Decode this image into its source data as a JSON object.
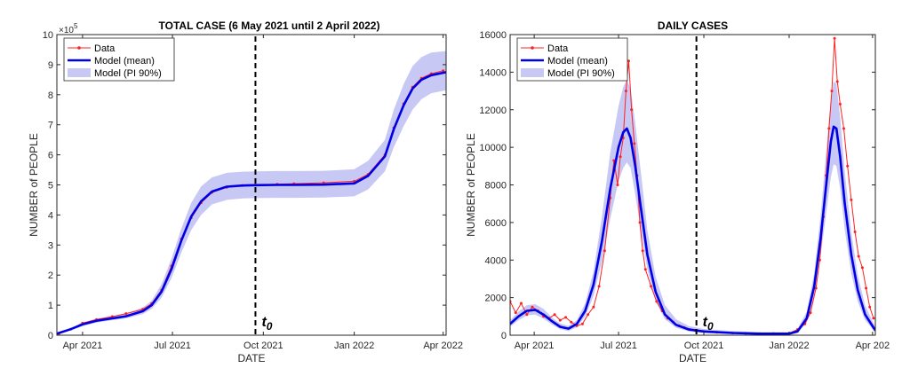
{
  "colors": {
    "data": "#ff2020",
    "model": "#0000e6",
    "band": "#c8c8f5",
    "axis": "#262626",
    "t0_line": "#000000"
  },
  "chart_data": [
    {
      "type": "line",
      "title": "TOTAL CASE (6 May 2021 until 2 April 2022)",
      "xlabel": "DATE",
      "ylabel": "NUMBER of PEOPLE",
      "y_exponent_label": "×10",
      "y_exponent_power": "5",
      "xlim": [
        "2021-03-06",
        "2022-04-04"
      ],
      "ylim": [
        0,
        10
      ],
      "xticks": [
        {
          "date": "2021-04-01",
          "label": "Apr 2021"
        },
        {
          "date": "2021-07-01",
          "label": "Jul 2021"
        },
        {
          "date": "2021-10-01",
          "label": "Oct 2021"
        },
        {
          "date": "2022-01-01",
          "label": "Jan 2022"
        },
        {
          "date": "2022-04-01",
          "label": "Apr 2022"
        }
      ],
      "yticks": [
        0,
        1,
        2,
        3,
        4,
        5,
        6,
        7,
        8,
        9,
        10
      ],
      "t0_date": "2021-09-23",
      "t0_label": "t",
      "t0_sub": "0",
      "legend": [
        "Data",
        "Model (mean)",
        "Model (PI 90%)"
      ],
      "legend_position": "top-left",
      "grid": false,
      "series": [
        {
          "name": "Data",
          "x": [
            "2021-03-08",
            "2021-03-20",
            "2021-04-01",
            "2021-04-15",
            "2021-05-01",
            "2021-05-15",
            "2021-06-01",
            "2021-06-10",
            "2021-06-20",
            "2021-06-30",
            "2021-07-10",
            "2021-07-20",
            "2021-07-30",
            "2021-08-10",
            "2021-08-25",
            "2021-09-10",
            "2021-09-23",
            "2021-10-15",
            "2021-11-01",
            "2021-12-01",
            "2022-01-01",
            "2022-01-15",
            "2022-02-01",
            "2022-02-10",
            "2022-02-20",
            "2022-03-01",
            "2022-03-10",
            "2022-03-20",
            "2022-04-01"
          ],
          "values": [
            0.05,
            0.2,
            0.4,
            0.52,
            0.62,
            0.72,
            0.86,
            1.05,
            1.5,
            2.3,
            3.2,
            3.9,
            4.4,
            4.75,
            4.92,
            4.98,
            5.0,
            5.02,
            5.04,
            5.07,
            5.12,
            5.35,
            6.0,
            6.9,
            7.7,
            8.25,
            8.55,
            8.7,
            8.8
          ]
        },
        {
          "name": "Model (mean)",
          "x": [
            "2021-03-06",
            "2021-03-20",
            "2021-04-01",
            "2021-04-15",
            "2021-05-01",
            "2021-05-15",
            "2021-06-01",
            "2021-06-10",
            "2021-06-20",
            "2021-06-30",
            "2021-07-10",
            "2021-07-20",
            "2021-07-30",
            "2021-08-10",
            "2021-08-25",
            "2021-09-10",
            "2021-09-23",
            "2021-10-15",
            "2021-11-01",
            "2021-12-01",
            "2022-01-01",
            "2022-01-15",
            "2022-02-01",
            "2022-02-10",
            "2022-02-20",
            "2022-03-01",
            "2022-03-10",
            "2022-03-20",
            "2022-04-04"
          ],
          "values": [
            0.05,
            0.2,
            0.36,
            0.48,
            0.56,
            0.63,
            0.8,
            1.0,
            1.45,
            2.2,
            3.15,
            3.95,
            4.45,
            4.78,
            4.94,
            4.98,
            4.99,
            5.0,
            5.0,
            5.01,
            5.05,
            5.3,
            5.95,
            6.85,
            7.65,
            8.2,
            8.5,
            8.65,
            8.75
          ]
        },
        {
          "name": "Model (PI 90%)",
          "x": [
            "2021-03-06",
            "2021-03-20",
            "2021-04-01",
            "2021-04-15",
            "2021-05-01",
            "2021-05-15",
            "2021-06-01",
            "2021-06-10",
            "2021-06-20",
            "2021-06-30",
            "2021-07-10",
            "2021-07-20",
            "2021-07-30",
            "2021-08-10",
            "2021-08-25",
            "2021-09-10",
            "2021-09-23",
            "2021-10-15",
            "2021-11-01",
            "2021-12-01",
            "2022-01-01",
            "2022-01-15",
            "2022-02-01",
            "2022-02-10",
            "2022-02-20",
            "2022-03-01",
            "2022-03-10",
            "2022-03-20",
            "2022-04-04"
          ],
          "lower": [
            0.04,
            0.17,
            0.3,
            0.42,
            0.5,
            0.56,
            0.7,
            0.88,
            1.25,
            1.9,
            2.75,
            3.5,
            4.0,
            4.35,
            4.5,
            4.55,
            4.56,
            4.57,
            4.57,
            4.58,
            4.62,
            4.85,
            5.45,
            6.25,
            6.95,
            7.5,
            7.85,
            8.05,
            8.15
          ],
          "upper": [
            0.06,
            0.23,
            0.42,
            0.55,
            0.63,
            0.72,
            0.92,
            1.15,
            1.7,
            2.55,
            3.55,
            4.4,
            4.95,
            5.25,
            5.4,
            5.44,
            5.45,
            5.46,
            5.46,
            5.47,
            5.52,
            5.8,
            6.5,
            7.5,
            8.35,
            8.95,
            9.25,
            9.4,
            9.45
          ]
        }
      ]
    },
    {
      "type": "line",
      "title": "DAILY CASES",
      "xlabel": "DATE",
      "ylabel": "NUMBER of PEOPLE",
      "xlim": [
        "2021-03-06",
        "2022-04-04"
      ],
      "ylim": [
        0,
        16000
      ],
      "xticks": [
        {
          "date": "2021-04-01",
          "label": "Apr 2021"
        },
        {
          "date": "2021-07-01",
          "label": "Jul 2021"
        },
        {
          "date": "2021-10-01",
          "label": "Oct 2021"
        },
        {
          "date": "2022-01-01",
          "label": "Jan 2022"
        },
        {
          "date": "2022-04-01",
          "label": "Apr 202"
        }
      ],
      "yticks": [
        0,
        2000,
        4000,
        6000,
        8000,
        10000,
        12000,
        14000,
        16000
      ],
      "t0_date": "2021-09-23",
      "t0_label": "t",
      "t0_sub": "0",
      "legend": [
        "Data",
        "Model (mean)",
        "Model (PI 90%)"
      ],
      "legend_position": "top-left",
      "grid": false,
      "series": [
        {
          "name": "Data",
          "x": [
            "2021-03-06",
            "2021-03-12",
            "2021-03-18",
            "2021-03-24",
            "2021-03-30",
            "2021-04-05",
            "2021-04-11",
            "2021-04-17",
            "2021-04-23",
            "2021-04-29",
            "2021-05-05",
            "2021-05-11",
            "2021-05-17",
            "2021-05-23",
            "2021-05-29",
            "2021-06-04",
            "2021-06-10",
            "2021-06-16",
            "2021-06-22",
            "2021-06-26",
            "2021-06-30",
            "2021-07-03",
            "2021-07-06",
            "2021-07-09",
            "2021-07-12",
            "2021-07-15",
            "2021-07-18",
            "2021-07-21",
            "2021-07-24",
            "2021-07-27",
            "2021-07-30",
            "2021-08-05",
            "2021-08-11",
            "2021-08-17",
            "2021-08-23",
            "2021-08-29",
            "2021-09-04",
            "2021-09-10",
            "2021-09-16",
            "2021-09-22",
            "2021-10-01",
            "2021-10-15",
            "2021-11-01",
            "2021-11-15",
            "2021-12-01",
            "2021-12-15",
            "2022-01-01",
            "2022-01-10",
            "2022-01-18",
            "2022-01-24",
            "2022-01-30",
            "2022-02-03",
            "2022-02-07",
            "2022-02-10",
            "2022-02-13",
            "2022-02-16",
            "2022-02-19",
            "2022-02-22",
            "2022-02-25",
            "2022-03-01",
            "2022-03-05",
            "2022-03-09",
            "2022-03-13",
            "2022-03-17",
            "2022-03-21",
            "2022-03-25",
            "2022-03-29",
            "2022-04-02"
          ],
          "values": [
            1800,
            1200,
            1700,
            1100,
            1500,
            1300,
            1000,
            900,
            1100,
            800,
            950,
            700,
            500,
            600,
            1100,
            1500,
            2600,
            4500,
            7300,
            9300,
            8000,
            9500,
            10500,
            13000,
            14600,
            12000,
            10200,
            8500,
            6000,
            4500,
            3500,
            2600,
            1800,
            1300,
            900,
            700,
            500,
            400,
            300,
            250,
            200,
            150,
            120,
            100,
            80,
            90,
            100,
            300,
            600,
            1200,
            2500,
            4000,
            6300,
            8500,
            11000,
            13000,
            15800,
            13500,
            12300,
            11000,
            9000,
            7200,
            5500,
            4200,
            3600,
            2500,
            1500,
            900
          ]
        },
        {
          "name": "Model (mean)",
          "x": [
            "2021-03-06",
            "2021-03-15",
            "2021-03-24",
            "2021-04-02",
            "2021-04-11",
            "2021-04-20",
            "2021-04-29",
            "2021-05-08",
            "2021-05-17",
            "2021-05-26",
            "2021-06-04",
            "2021-06-13",
            "2021-06-22",
            "2021-07-01",
            "2021-07-06",
            "2021-07-10",
            "2021-07-14",
            "2021-07-19",
            "2021-07-25",
            "2021-08-01",
            "2021-08-10",
            "2021-08-20",
            "2021-09-01",
            "2021-09-15",
            "2021-10-01",
            "2021-11-01",
            "2021-12-01",
            "2022-01-01",
            "2022-01-10",
            "2022-01-20",
            "2022-01-28",
            "2022-02-04",
            "2022-02-10",
            "2022-02-15",
            "2022-02-18",
            "2022-02-21",
            "2022-02-25",
            "2022-03-02",
            "2022-03-09",
            "2022-03-16",
            "2022-03-24",
            "2022-04-04"
          ],
          "values": [
            600,
            1000,
            1300,
            1350,
            1100,
            750,
            450,
            350,
            600,
            1300,
            2700,
            5000,
            7800,
            10000,
            10800,
            11000,
            10500,
            9000,
            6800,
            4300,
            2300,
            1100,
            550,
            300,
            200,
            120,
            80,
            80,
            200,
            900,
            2600,
            5200,
            8000,
            10300,
            11100,
            11000,
            9500,
            7000,
            4300,
            2400,
            1100,
            250
          ]
        },
        {
          "name": "Model (PI 90%)",
          "x": [
            "2021-03-06",
            "2021-03-15",
            "2021-03-24",
            "2021-04-02",
            "2021-04-11",
            "2021-04-20",
            "2021-04-29",
            "2021-05-08",
            "2021-05-17",
            "2021-05-26",
            "2021-06-04",
            "2021-06-13",
            "2021-06-22",
            "2021-07-01",
            "2021-07-06",
            "2021-07-10",
            "2021-07-14",
            "2021-07-19",
            "2021-07-25",
            "2021-08-01",
            "2021-08-10",
            "2021-08-20",
            "2021-09-01",
            "2021-09-15",
            "2021-10-01",
            "2021-11-01",
            "2021-12-01",
            "2022-01-01",
            "2022-01-10",
            "2022-01-20",
            "2022-01-28",
            "2022-02-04",
            "2022-02-10",
            "2022-02-15",
            "2022-02-18",
            "2022-02-21",
            "2022-02-25",
            "2022-03-02",
            "2022-03-09",
            "2022-03-16",
            "2022-03-24",
            "2022-04-04"
          ],
          "lower": [
            450,
            800,
            1050,
            1100,
            880,
            580,
            320,
            220,
            420,
            1000,
            2100,
            3900,
            6200,
            8200,
            8900,
            9200,
            8900,
            7500,
            5600,
            3500,
            1800,
            850,
            400,
            200,
            120,
            60,
            40,
            40,
            120,
            650,
            2000,
            4200,
            6500,
            8400,
            9100,
            9000,
            7800,
            5600,
            3300,
            1800,
            800,
            150
          ],
          "upper": [
            800,
            1250,
            1600,
            1650,
            1400,
            950,
            620,
            500,
            800,
            1700,
            3400,
            6300,
            9700,
            12200,
            13200,
            13600,
            13100,
            11300,
            8700,
            5600,
            3100,
            1600,
            850,
            480,
            330,
            220,
            160,
            160,
            330,
            1250,
            3300,
            6400,
            9800,
            12500,
            13500,
            13400,
            11600,
            8700,
            5500,
            3200,
            1600,
            420
          ]
        }
      ]
    }
  ]
}
